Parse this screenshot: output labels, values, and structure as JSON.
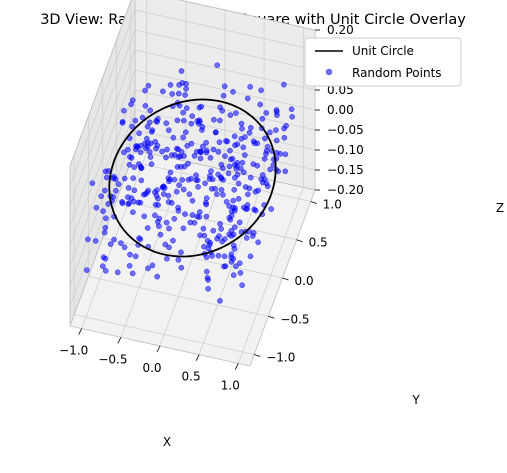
{
  "chart_data": {
    "type": "scatter",
    "projection": "3d",
    "title": "3D View: Random Points in Square with Unit Circle Overlay",
    "xlabel": "X",
    "ylabel": "Y",
    "zlabel": "Z",
    "xlim": [
      -1.15,
      1.15
    ],
    "ylim": [
      -1.15,
      1.15
    ],
    "zlim": [
      -0.2,
      0.2
    ],
    "x_ticks": [
      "−1.0",
      "−0.5",
      "0.0",
      "0.5",
      "1.0"
    ],
    "y_ticks": [
      "−1.0",
      "−0.5",
      "0.0",
      "0.5",
      "1.0"
    ],
    "z_ticks": [
      "−0.20",
      "−0.15",
      "−0.10",
      "−0.05",
      "0.00",
      "0.05",
      "0.10",
      "0.15",
      "0.20"
    ],
    "grid": true,
    "legend_position": "top-right",
    "series": [
      {
        "name": "Unit Circle",
        "kind": "line",
        "color": "#000000",
        "radius": 1.0,
        "z": 0.0
      },
      {
        "name": "Random Points",
        "kind": "scatter",
        "color": "#0000ff",
        "alpha": 0.55,
        "count": 420,
        "x_range": [
          -1.0,
          1.0
        ],
        "y_range": [
          -1.0,
          1.0
        ],
        "z_range": [
          -0.1,
          0.1
        ]
      }
    ]
  }
}
